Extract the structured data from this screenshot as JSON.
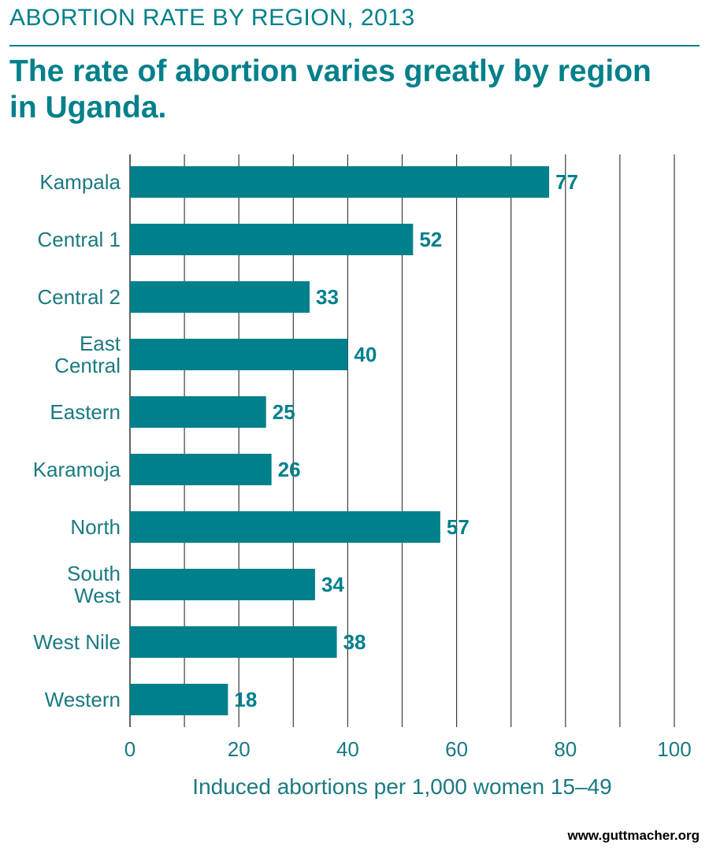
{
  "header": {
    "kicker": "ABORTION RATE BY REGION, 2013",
    "headline": "The rate of abortion varies greatly by region in Uganda."
  },
  "footer": {
    "source": "www.guttmacher.org"
  },
  "colors": {
    "accent": "#00808a",
    "grid": "#3c3c3c",
    "axis_text": "#1a7a80"
  },
  "chart_data": {
    "type": "bar",
    "orientation": "horizontal",
    "categories": [
      [
        "Kampala"
      ],
      [
        "Central 1"
      ],
      [
        "Central 2"
      ],
      [
        "East",
        "Central"
      ],
      [
        "Eastern"
      ],
      [
        "Karamoja"
      ],
      [
        "North"
      ],
      [
        "South",
        "West"
      ],
      [
        "West Nile"
      ],
      [
        "Western"
      ]
    ],
    "values": [
      77,
      52,
      33,
      40,
      25,
      26,
      57,
      34,
      38,
      18
    ],
    "xlabel": "Induced abortions per 1,000 women 15–49",
    "ylabel": "",
    "xlim": [
      0,
      100
    ],
    "x_ticks": [
      0,
      20,
      40,
      60,
      80,
      100
    ],
    "gridline_step": 10,
    "grid": true,
    "data_labels": true
  }
}
